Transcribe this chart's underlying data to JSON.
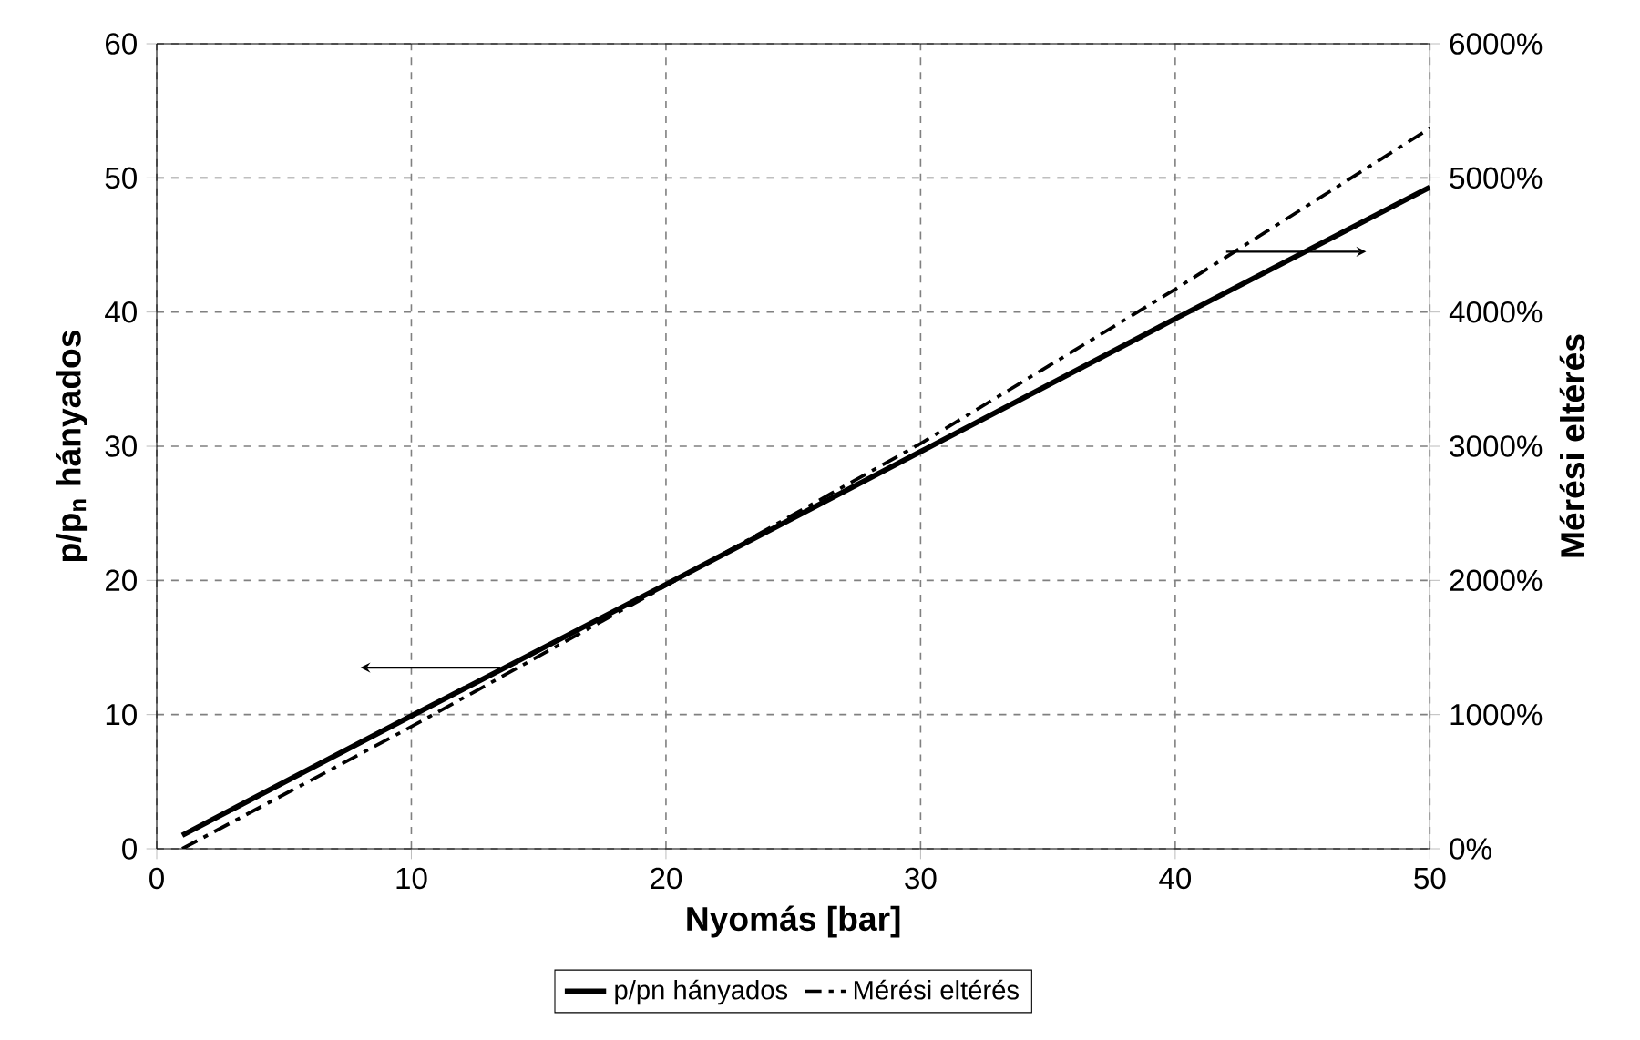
{
  "chart_data": {
    "type": "line",
    "xlabel": "Nyomás [bar]",
    "ylabel": "p/p$_{n}$ hányados",
    "y2label": "Mérési eltérés",
    "x": [
      1,
      10,
      20,
      30,
      40,
      50
    ],
    "series": [
      {
        "name": "p/pn hányados",
        "color": "#000000",
        "values": [
          1,
          9.9,
          19.7,
          29.6,
          39.5,
          49.3
        ],
        "line_style": "solid"
      },
      {
        "name": "Mérési eltérés",
        "color": "#000000",
        "values": [
          0,
          910,
          1960,
          3020,
          4170,
          5370
        ],
        "axis": "y2",
        "line_style": "dashed"
      }
    ],
    "xlim": [
      0,
      50
    ],
    "xticks": [
      0,
      10,
      20,
      30,
      40,
      50
    ],
    "ylim": [
      0,
      60
    ],
    "yticks": [
      0,
      10,
      20,
      30,
      40,
      50,
      60
    ],
    "y2lim": [
      0,
      6000
    ],
    "y2ticks": [
      {
        "value": 0,
        "label": "0%"
      },
      {
        "value": 1000,
        "label": "1000%"
      },
      {
        "value": 2000,
        "label": "2000%"
      },
      {
        "value": 3000,
        "label": "3000%"
      },
      {
        "value": 4000,
        "label": "4000%"
      },
      {
        "value": 5000,
        "label": "5000%"
      },
      {
        "value": 6000,
        "label": "6000%"
      }
    ],
    "grid": true,
    "legend": "bottom",
    "marker": "none"
  }
}
